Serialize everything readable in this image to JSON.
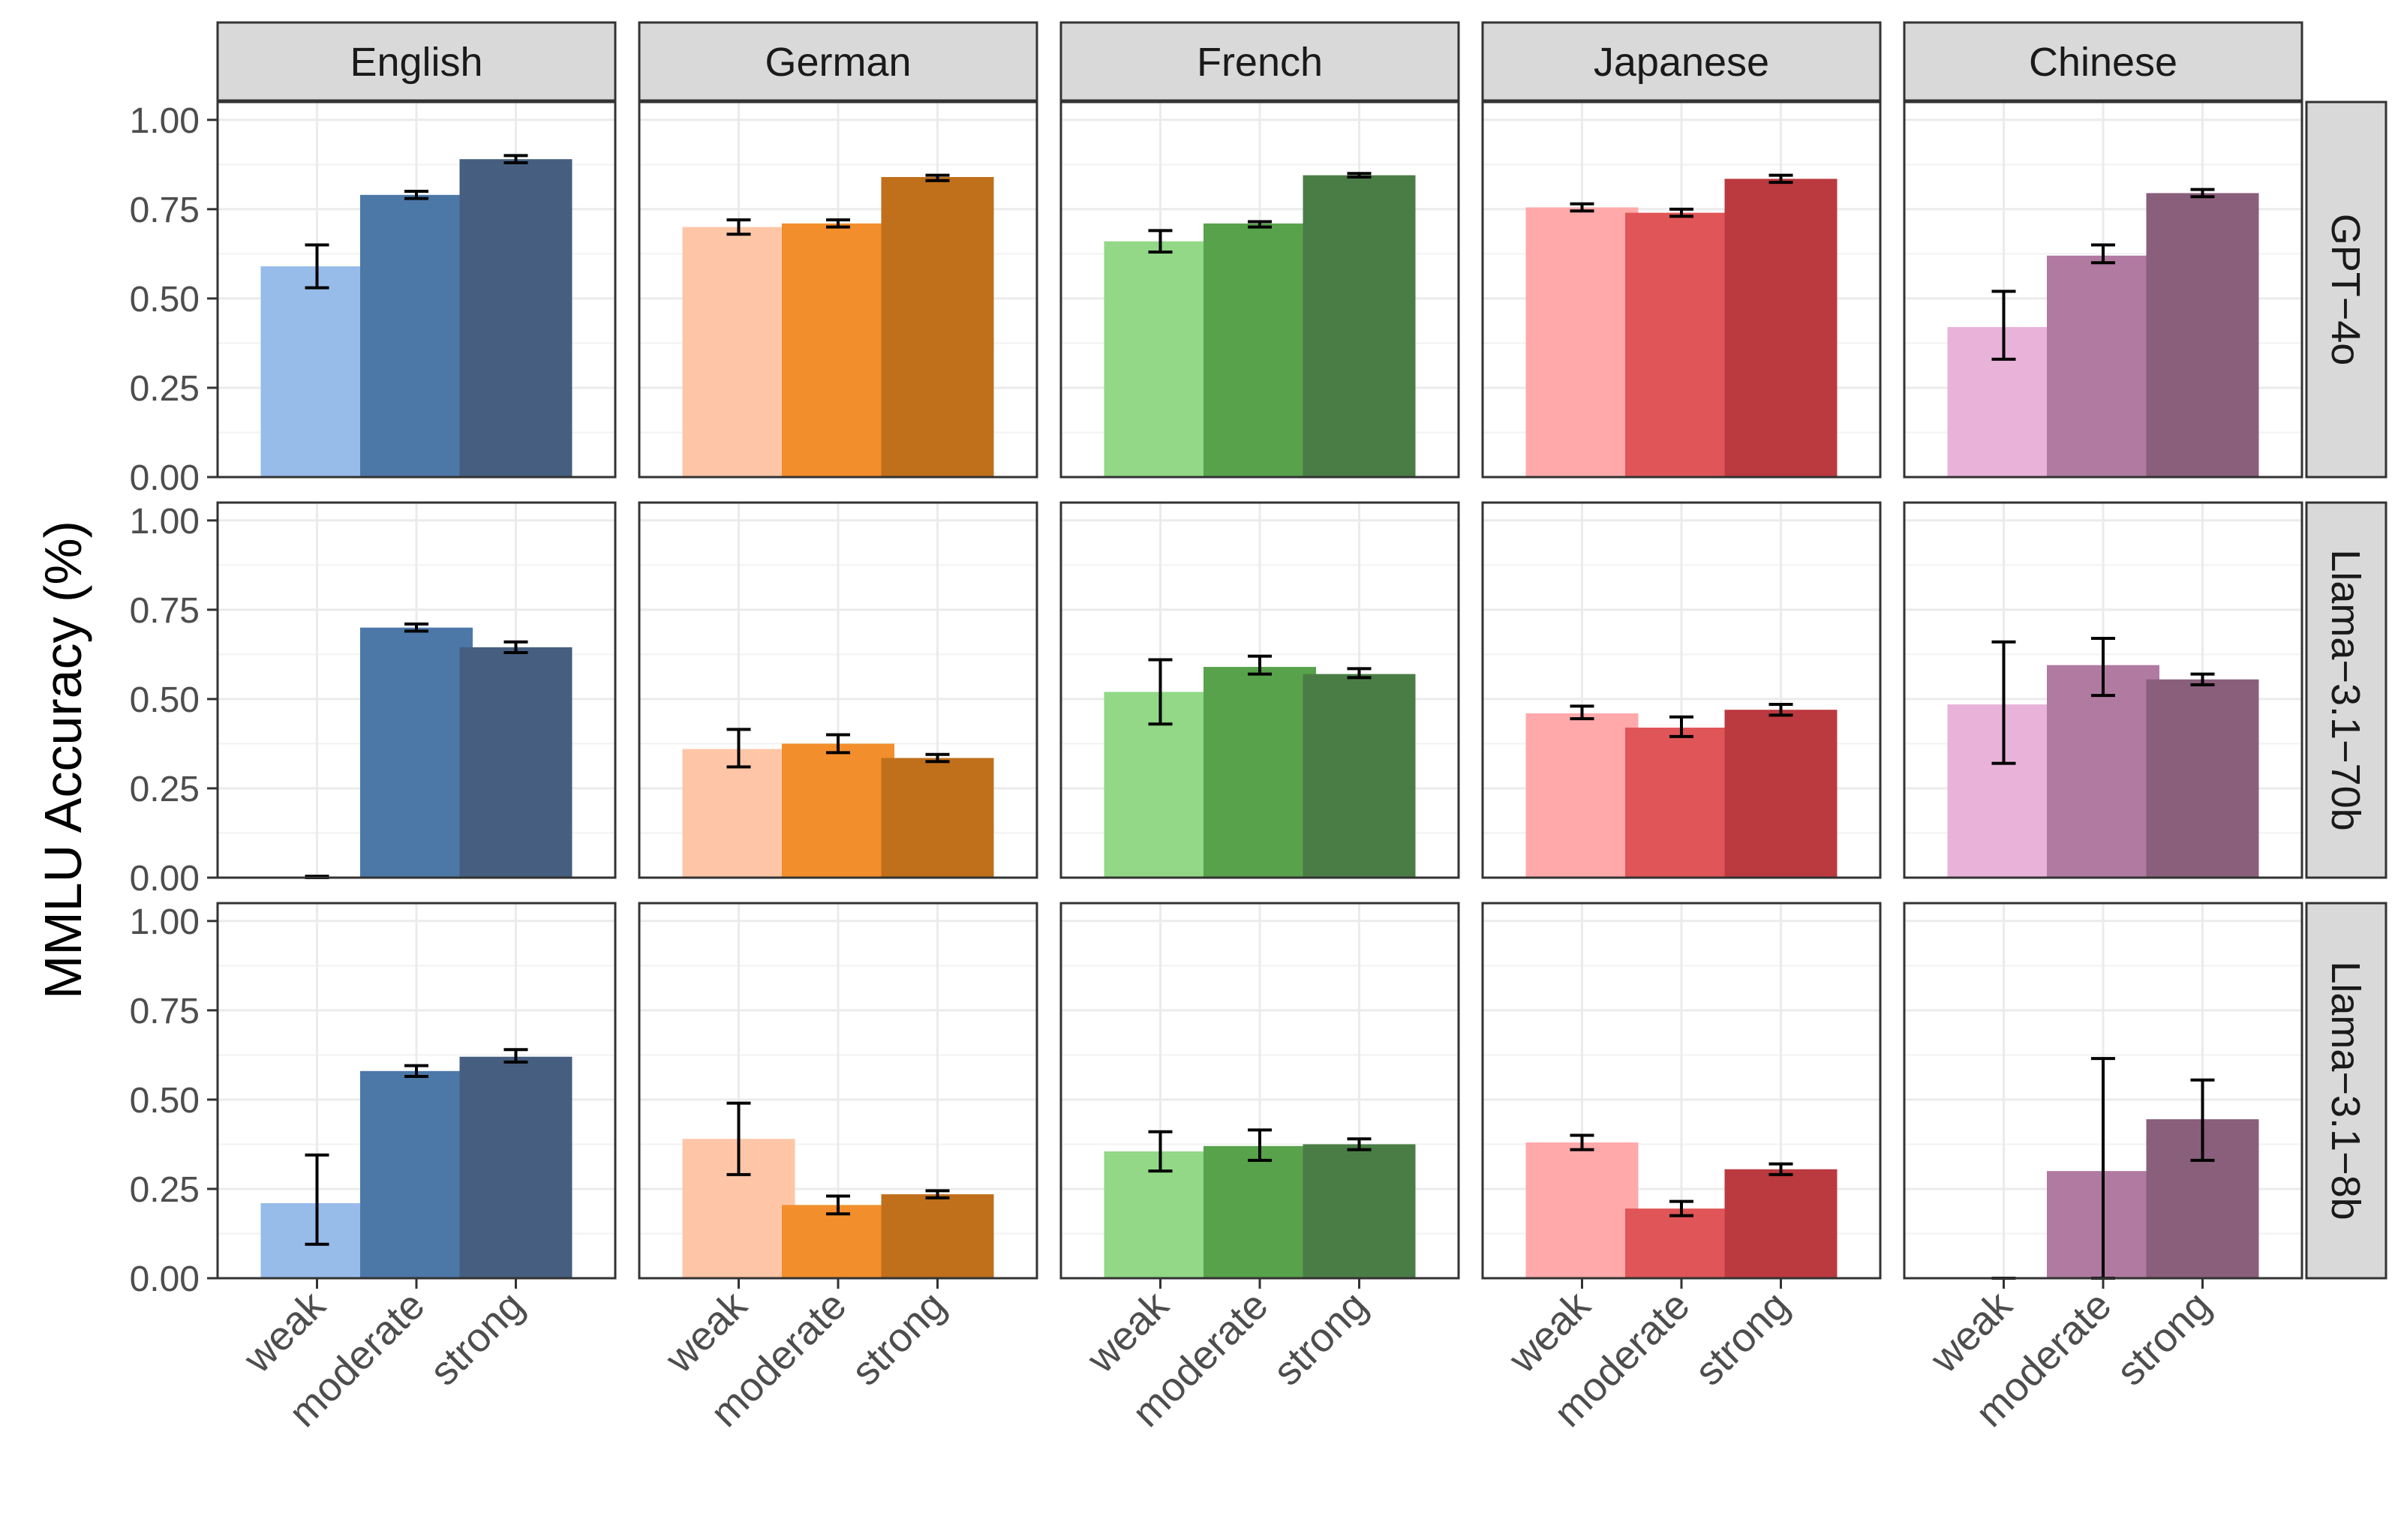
{
  "chart_data": {
    "type": "bar",
    "title": "",
    "xlabel": "",
    "ylabel": "MMLU Accuracy (%)",
    "ylim": [
      0,
      1.05
    ],
    "yticks": [
      "0.00",
      "0.25",
      "0.50",
      "0.75",
      "1.00"
    ],
    "categories": [
      "weak",
      "moderate",
      "strong"
    ],
    "columns": [
      "English",
      "German",
      "French",
      "Japanese",
      "Chinese"
    ],
    "rows": [
      "GPT−4o",
      "Llama−3.1−70b",
      "Llama−3.1−8b"
    ],
    "colors": {
      "English": [
        "#97bcea",
        "#4c78a8",
        "#465f80"
      ],
      "German": [
        "#fec6a6",
        "#f28e2b",
        "#c06f1b"
      ],
      "French": [
        "#92d887",
        "#58a24b",
        "#4a7d45"
      ],
      "Japanese": [
        "#ffa9ab",
        "#e05557",
        "#bb3a3f"
      ],
      "Chinese": [
        "#e9b3d9",
        "#b07aa1",
        "#8a5f7b"
      ]
    },
    "panels": [
      {
        "row": "GPT−4o",
        "column": "English",
        "values": [
          0.59,
          0.79,
          0.89
        ],
        "errors": [
          [
            0.53,
            0.65
          ],
          [
            0.78,
            0.8
          ],
          [
            0.88,
            0.9
          ]
        ]
      },
      {
        "row": "GPT−4o",
        "column": "German",
        "values": [
          0.7,
          0.71,
          0.84
        ],
        "errors": [
          [
            0.68,
            0.72
          ],
          [
            0.7,
            0.72
          ],
          [
            0.83,
            0.845
          ]
        ]
      },
      {
        "row": "GPT−4o",
        "column": "French",
        "values": [
          0.66,
          0.71,
          0.845
        ],
        "errors": [
          [
            0.63,
            0.69
          ],
          [
            0.7,
            0.715
          ],
          [
            0.84,
            0.85
          ]
        ]
      },
      {
        "row": "GPT−4o",
        "column": "Japanese",
        "values": [
          0.755,
          0.74,
          0.835
        ],
        "errors": [
          [
            0.745,
            0.765
          ],
          [
            0.73,
            0.75
          ],
          [
            0.825,
            0.845
          ]
        ]
      },
      {
        "row": "GPT−4o",
        "column": "Chinese",
        "values": [
          0.42,
          0.62,
          0.795
        ],
        "errors": [
          [
            0.33,
            0.52
          ],
          [
            0.6,
            0.65
          ],
          [
            0.785,
            0.805
          ]
        ]
      },
      {
        "row": "Llama−3.1−70b",
        "column": "English",
        "values": [
          0.002,
          0.7,
          0.645
        ],
        "errors": [
          [
            0.0,
            0.004
          ],
          [
            0.69,
            0.71
          ],
          [
            0.63,
            0.66
          ]
        ]
      },
      {
        "row": "Llama−3.1−70b",
        "column": "German",
        "values": [
          0.36,
          0.375,
          0.335
        ],
        "errors": [
          [
            0.31,
            0.415
          ],
          [
            0.35,
            0.4
          ],
          [
            0.325,
            0.345
          ]
        ]
      },
      {
        "row": "Llama−3.1−70b",
        "column": "French",
        "values": [
          0.52,
          0.59,
          0.57
        ],
        "errors": [
          [
            0.43,
            0.61
          ],
          [
            0.57,
            0.62
          ],
          [
            0.56,
            0.585
          ]
        ]
      },
      {
        "row": "Llama−3.1−70b",
        "column": "Japanese",
        "values": [
          0.46,
          0.42,
          0.47
        ],
        "errors": [
          [
            0.445,
            0.48
          ],
          [
            0.395,
            0.45
          ],
          [
            0.455,
            0.485
          ]
        ]
      },
      {
        "row": "Llama−3.1−70b",
        "column": "Chinese",
        "values": [
          0.485,
          0.595,
          0.555
        ],
        "errors": [
          [
            0.32,
            0.66
          ],
          [
            0.51,
            0.67
          ],
          [
            0.54,
            0.57
          ]
        ]
      },
      {
        "row": "Llama−3.1−8b",
        "column": "English",
        "values": [
          0.21,
          0.58,
          0.62
        ],
        "errors": [
          [
            0.095,
            0.345
          ],
          [
            0.565,
            0.595
          ],
          [
            0.605,
            0.64
          ]
        ]
      },
      {
        "row": "Llama−3.1−8b",
        "column": "German",
        "values": [
          0.39,
          0.205,
          0.235
        ],
        "errors": [
          [
            0.29,
            0.49
          ],
          [
            0.18,
            0.23
          ],
          [
            0.225,
            0.245
          ]
        ]
      },
      {
        "row": "Llama−3.1−8b",
        "column": "French",
        "values": [
          0.355,
          0.37,
          0.375
        ],
        "errors": [
          [
            0.3,
            0.41
          ],
          [
            0.33,
            0.415
          ],
          [
            0.36,
            0.39
          ]
        ]
      },
      {
        "row": "Llama−3.1−8b",
        "column": "Japanese",
        "values": [
          0.38,
          0.195,
          0.305
        ],
        "errors": [
          [
            0.36,
            0.4
          ],
          [
            0.175,
            0.215
          ],
          [
            0.29,
            0.32
          ]
        ]
      },
      {
        "row": "Llama−3.1−8b",
        "column": "Chinese",
        "values": [
          0.0,
          0.3,
          0.445
        ],
        "errors": [
          [
            0.0,
            0.0
          ],
          [
            0.0,
            0.615
          ],
          [
            0.33,
            0.555
          ]
        ]
      }
    ]
  }
}
